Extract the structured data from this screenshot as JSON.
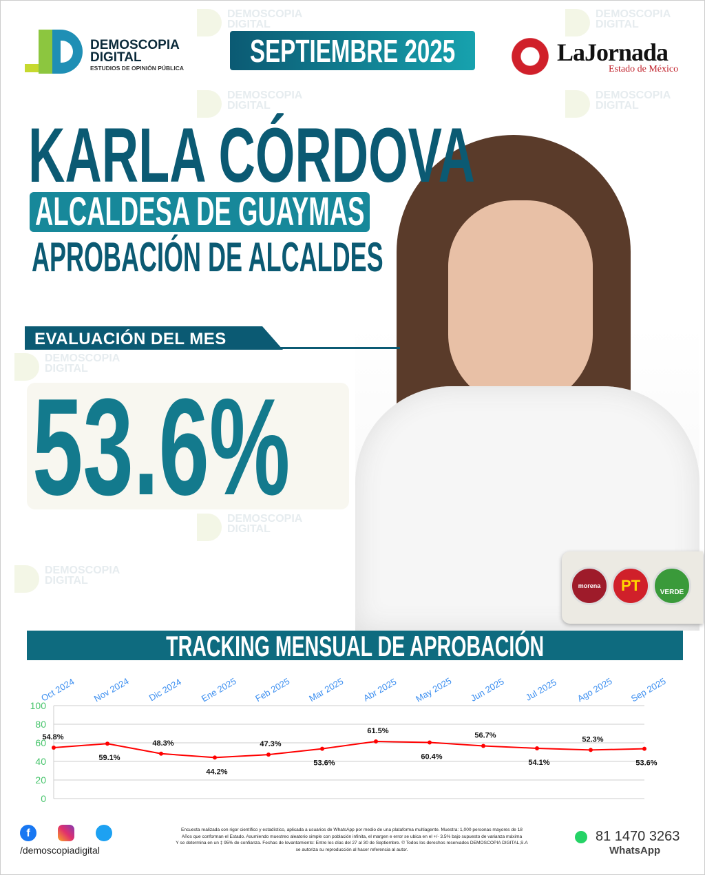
{
  "brand": {
    "name_line1": "DEMOSCOPIA",
    "name_line2": "DIGITAL",
    "tagline": "ESTUDIOS DE OPINIÓN PÚBLICA"
  },
  "period": "SEPTIEMBRE 2025",
  "partner": {
    "name": "LaJornada",
    "subtitle": "Estado de México"
  },
  "headline": {
    "name": "KARLA CÓRDOVA",
    "role": "ALCALDESA DE GUAYMAS",
    "category": "APROBACIÓN DE ALCALDES"
  },
  "evaluation": {
    "label": "EVALUACIÓN DEL MES",
    "value": "53.6%"
  },
  "parties": [
    "morena",
    "PT",
    "VERDE"
  ],
  "colors": {
    "primary": "#0b5a73",
    "accent": "#17889a",
    "line": "#ff0000",
    "axis": "#46c46b",
    "xlabel": "#3b8ef0"
  },
  "chart_title": "TRACKING MENSUAL DE APROBACIÓN",
  "chart_data": {
    "type": "line",
    "categories": [
      "Oct 2024",
      "Nov 2024",
      "Dic 2024",
      "Ene 2025",
      "Feb 2025",
      "Mar 2025",
      "Abr 2025",
      "May 2025",
      "Jun 2025",
      "Jul 2025",
      "Ago 2025",
      "Sep 2025"
    ],
    "values": [
      54.8,
      59.1,
      48.3,
      44.2,
      47.3,
      53.6,
      61.5,
      60.4,
      56.7,
      54.1,
      52.3,
      53.6
    ],
    "labels": [
      "54.8%",
      "59.1%",
      "48.3%",
      "44.2%",
      "47.3%",
      "53.6%",
      "61.5%",
      "60.4%",
      "56.7%",
      "54.1%",
      "52.3%",
      "53.6%"
    ],
    "ylim": [
      0,
      100
    ],
    "yticks": [
      "0",
      "20",
      "40",
      "60",
      "80",
      "100"
    ],
    "grid": true
  },
  "footer": {
    "handle": "/demoscopiadigital",
    "phone": "81 1470 3263",
    "whatsapp": "WhatsApp",
    "disclaimer": [
      "Encuesta realizada con rigor científico y estadístico, aplicada a usuarios de WhatsApp por medio de una plataforma multiagente. Muestra: 1,000 personas mayores de 18",
      "Años que conforman el Estado. Asumiendo muestreo aleatorio simple con población infinita, el margen e error se ubica en el +/- 3.5% bajo supuesto de varianza máxima",
      "Y se determina en un ‡ 95% de confianza. Fechas de levantamiento: Entre los días del 27 al 30 de Septiembre. © Todos los derechos reservados DEMOSCOPIA DIGITAL,S.A",
      "se autoriza su reproducción al hacer referencia al autor."
    ]
  }
}
